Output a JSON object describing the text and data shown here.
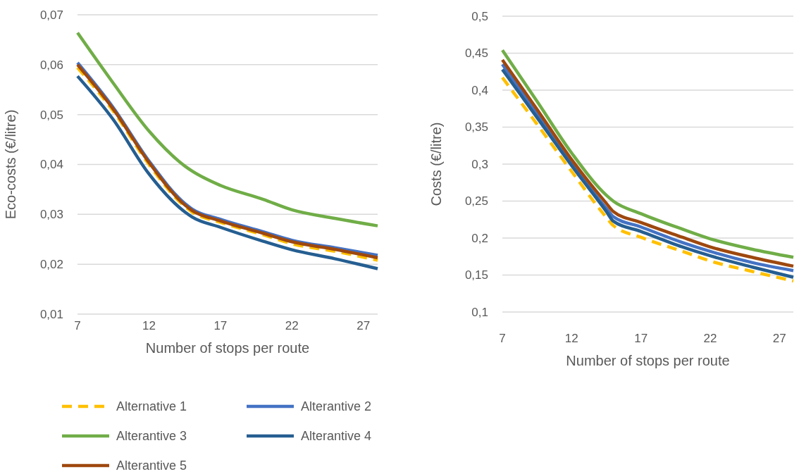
{
  "chart_data": [
    {
      "type": "line",
      "xlabel": "Number of stops per route",
      "ylabel": "Eco-costs (€/litre)",
      "x": [
        7,
        9.5,
        12,
        14.5,
        15,
        17,
        20,
        22,
        25,
        28
      ],
      "xlim": [
        7,
        28
      ],
      "xticks": [
        7,
        12,
        17,
        22,
        27
      ],
      "ylim": [
        0.01,
        0.07
      ],
      "yticks": [
        {
          "value": 0.01,
          "label": "0,01"
        },
        {
          "value": 0.02,
          "label": "0,02"
        },
        {
          "value": 0.03,
          "label": "0,03"
        },
        {
          "value": 0.04,
          "label": "0,04"
        },
        {
          "value": 0.05,
          "label": "0,05"
        },
        {
          "value": 0.06,
          "label": "0,06"
        },
        {
          "value": 0.07,
          "label": "0,07"
        }
      ],
      "grid": "y",
      "legend": "bottom",
      "marker": "none",
      "series": [
        {
          "name": "Alternative 1",
          "color": "#ffc000",
          "line_style": "dashed",
          "values": [
            0.0594,
            0.0507,
            0.04,
            0.0316,
            0.0305,
            0.0284,
            0.0259,
            0.0241,
            0.0226,
            0.0208
          ]
        },
        {
          "name": "Alterantive 2",
          "color": "#4472c4",
          "values": [
            0.0604,
            0.0514,
            0.0407,
            0.0322,
            0.0311,
            0.029,
            0.0265,
            0.0248,
            0.0233,
            0.0218
          ]
        },
        {
          "name": "Alterantive 3",
          "color": "#70ad47",
          "values": [
            0.0664,
            0.0563,
            0.0467,
            0.0397,
            0.0387,
            0.0358,
            0.033,
            0.0309,
            0.0292,
            0.0277
          ]
        },
        {
          "name": "Alterantive 4",
          "color": "#255e91",
          "values": [
            0.0577,
            0.049,
            0.0381,
            0.0305,
            0.0295,
            0.0274,
            0.0246,
            0.0229,
            0.0211,
            0.0191
          ]
        },
        {
          "name": "Alterantive 5",
          "color": "#9e480e",
          "values": [
            0.06,
            0.0511,
            0.0404,
            0.0319,
            0.0308,
            0.0287,
            0.0262,
            0.0245,
            0.023,
            0.0213
          ]
        }
      ]
    },
    {
      "type": "line",
      "xlabel": "Number of stops per route",
      "ylabel": "Costs (€/litre)",
      "x": [
        7,
        9.5,
        12,
        14.5,
        15,
        17,
        20,
        22,
        25,
        28
      ],
      "xlim": [
        7,
        28
      ],
      "xticks": [
        7,
        12,
        17,
        22,
        27
      ],
      "ylim": [
        0.1,
        0.5
      ],
      "yticks": [
        {
          "value": 0.1,
          "label": "0,1"
        },
        {
          "value": 0.15,
          "label": "0,15"
        },
        {
          "value": 0.2,
          "label": "0,2"
        },
        {
          "value": 0.25,
          "label": "0,25"
        },
        {
          "value": 0.3,
          "label": "0,3"
        },
        {
          "value": 0.35,
          "label": "0,35"
        },
        {
          "value": 0.4,
          "label": "0,4"
        },
        {
          "value": 0.45,
          "label": "0,45"
        },
        {
          "value": 0.5,
          "label": "0,5"
        }
      ],
      "grid": "y",
      "marker": "none",
      "series": [
        {
          "color": "#ffc000",
          "line_style": "dashed",
          "values": [
            0.417,
            0.354,
            0.29,
            0.228,
            0.217,
            0.201,
            0.182,
            0.169,
            0.155,
            0.142
          ]
        },
        {
          "color": "#4472c4",
          "values": [
            0.435,
            0.368,
            0.301,
            0.24,
            0.229,
            0.215,
            0.194,
            0.182,
            0.167,
            0.156
          ]
        },
        {
          "color": "#70ad47",
          "values": [
            0.454,
            0.385,
            0.315,
            0.258,
            0.25,
            0.233,
            0.212,
            0.199,
            0.185,
            0.174
          ]
        },
        {
          "color": "#255e91",
          "values": [
            0.428,
            0.363,
            0.298,
            0.236,
            0.223,
            0.209,
            0.188,
            0.176,
            0.161,
            0.147
          ]
        },
        {
          "color": "#9e480e",
          "values": [
            0.441,
            0.374,
            0.306,
            0.247,
            0.236,
            0.221,
            0.201,
            0.188,
            0.174,
            0.162
          ]
        }
      ]
    }
  ]
}
